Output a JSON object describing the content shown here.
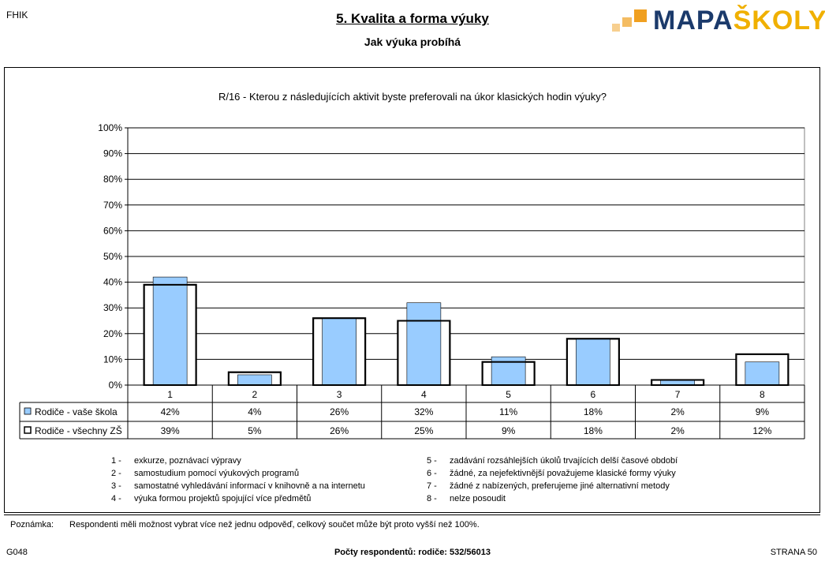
{
  "header": {
    "left_code": "FHIK",
    "title": "5. Kvalita a forma výuky",
    "subtitle": "Jak výuka probíhá",
    "logo_text_1": "MAPA",
    "logo_text_2": "ŠKOLY",
    "logo_color_1": "#1b3a6b",
    "logo_color_2": "#f0b000"
  },
  "chart_data": {
    "type": "bar",
    "title": "R/16 - Kterou z následujících aktivit byste preferovali na úkor klasických hodin výuky?",
    "categories": [
      "1",
      "2",
      "3",
      "4",
      "5",
      "6",
      "7",
      "8"
    ],
    "ylim": [
      0,
      100
    ],
    "yticks": [
      "0%",
      "10%",
      "20%",
      "30%",
      "40%",
      "50%",
      "60%",
      "70%",
      "80%",
      "90%",
      "100%"
    ],
    "grid": true,
    "series": [
      {
        "name": "Rodiče - vaše škola",
        "values": [
          42,
          4,
          26,
          32,
          11,
          18,
          2,
          9
        ],
        "labels": [
          "42%",
          "4%",
          "26%",
          "32%",
          "11%",
          "18%",
          "2%",
          "9%"
        ],
        "color": "#99ccff"
      },
      {
        "name": "Rodiče - všechny ZŠ",
        "values": [
          39,
          5,
          26,
          25,
          9,
          18,
          2,
          12
        ],
        "labels": [
          "39%",
          "5%",
          "26%",
          "25%",
          "9%",
          "18%",
          "2%",
          "12%"
        ],
        "color": "#ffffff"
      }
    ]
  },
  "legend_items": [
    {
      "num": "1",
      "text": "exkurze, poznávací výpravy"
    },
    {
      "num": "2",
      "text": "samostudium pomocí výukových programů"
    },
    {
      "num": "3",
      "text": "samostatné vyhledávání informací v knihovně a na internetu"
    },
    {
      "num": "4",
      "text": "výuka formou projektů spojující více předmětů"
    },
    {
      "num": "5",
      "text": "zadávání rozsáhlejších úkolů trvajících delší časové období"
    },
    {
      "num": "6",
      "text": "žádné, za nejefektivnější považujeme klasické formy výuky"
    },
    {
      "num": "7",
      "text": "žádné z nabízených, preferujeme jiné alternativní metody"
    },
    {
      "num": "8",
      "text": "nelze posoudit"
    }
  ],
  "note": {
    "label": "Poznámka:",
    "text": "Respondenti měli možnost vybrat více než jednu odpověď, celkový součet může být proto vyšší než 100%."
  },
  "footer": {
    "left": "G048",
    "center": "Počty respondentů:   rodiče: 532/56013",
    "right": "STRANA 50"
  }
}
